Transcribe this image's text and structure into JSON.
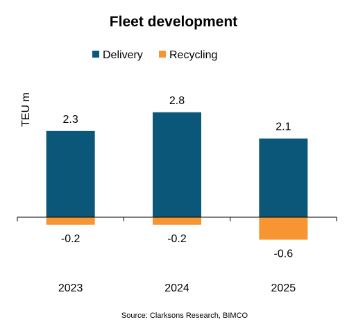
{
  "chart_data": {
    "type": "bar",
    "title": "Fleet development",
    "ylabel": "TEU m",
    "xlabel": "",
    "categories": [
      "2023",
      "2024",
      "2025"
    ],
    "series": [
      {
        "name": "Delivery",
        "color": "#0b5779",
        "values": [
          2.3,
          2.8,
          2.1
        ]
      },
      {
        "name": "Recycling",
        "color": "#f79533",
        "values": [
          -0.2,
          -0.2,
          -0.6
        ]
      }
    ],
    "data_labels": {
      "Delivery": [
        "2.3",
        "2.8",
        "2.1"
      ],
      "Recycling": [
        "-0.2",
        "-0.2",
        "-0.6"
      ]
    },
    "ylim": [
      -1.3,
      3.8
    ],
    "grid": false,
    "legend": "top",
    "source": "Source: Clarksons Research, BIMCO"
  }
}
